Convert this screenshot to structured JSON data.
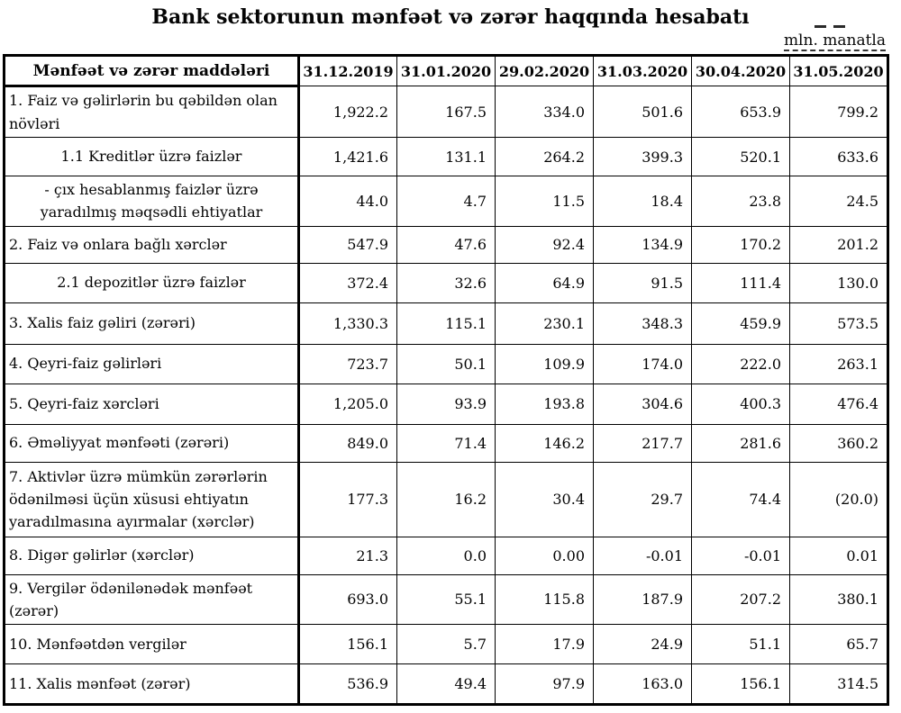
{
  "title": "Bank sektorunun mənfəət və zərər haqqında hesabatı",
  "unit_label": "mln. manatla",
  "table": {
    "header": [
      "Mənfəət və zərər maddələri",
      "31.12.2019",
      "31.01.2020",
      "29.02.2020",
      "31.03.2020",
      "30.04.2020",
      "31.05.2020"
    ],
    "rows": [
      {
        "label": "1. Faiz və gəlirlərin bu qəbildən olan növləri",
        "indent": false,
        "values": [
          "1,922.2",
          "167.5",
          "334.0",
          "501.6",
          "653.9",
          "799.2"
        ]
      },
      {
        "label": "1.1 Kreditlər üzrə faizlər",
        "indent": true,
        "values": [
          "1,421.6",
          "131.1",
          "264.2",
          "399.3",
          "520.1",
          "633.6"
        ]
      },
      {
        "label": "- çıx hesablanmış faizlər üzrə yaradılmış məqsədli ehtiyatlar",
        "indent": true,
        "values": [
          "44.0",
          "4.7",
          "11.5",
          "18.4",
          "23.8",
          "24.5"
        ]
      },
      {
        "label": "2. Faiz və onlara bağlı xərclər",
        "indent": false,
        "values": [
          "547.9",
          "47.6",
          "92.4",
          "134.9",
          "170.2",
          "201.2"
        ]
      },
      {
        "label": "2.1 depozitlər üzrə faizlər",
        "indent": true,
        "values": [
          "372.4",
          "32.6",
          "64.9",
          "91.5",
          "111.4",
          "130.0"
        ]
      },
      {
        "label": "3. Xalis faiz gəliri (zərəri)",
        "indent": false,
        "values": [
          "1,330.3",
          "115.1",
          "230.1",
          "348.3",
          "459.9",
          "573.5"
        ]
      },
      {
        "label": "4. Qeyri-faiz gəlirləri",
        "indent": false,
        "values": [
          "723.7",
          "50.1",
          "109.9",
          "174.0",
          "222.0",
          "263.1"
        ]
      },
      {
        "label": "5. Qeyri-faiz xərcləri",
        "indent": false,
        "values": [
          "1,205.0",
          "93.9",
          "193.8",
          "304.6",
          "400.3",
          "476.4"
        ]
      },
      {
        "label": "6. Əməliyyat mənfəəti (zərəri)",
        "indent": false,
        "values": [
          "849.0",
          "71.4",
          "146.2",
          "217.7",
          "281.6",
          "360.2"
        ]
      },
      {
        "label": "7. Aktivlər üzrə mümkün zərərlərin ödənilməsi üçün xüsusi ehtiyatın yaradılmasına ayırmalar (xərclər)",
        "indent": false,
        "values": [
          "177.3",
          "16.2",
          "30.4",
          "29.7",
          "74.4",
          "(20.0)"
        ]
      },
      {
        "label": "8. Digər gəlirlər (xərclər)",
        "indent": false,
        "values": [
          "21.3",
          "0.0",
          "0.00",
          "-0.01",
          "-0.01",
          "0.01"
        ]
      },
      {
        "label": "9. Vergilər ödənilənədək mənfəət (zərər)",
        "indent": false,
        "values": [
          "693.0",
          "55.1",
          "115.8",
          "187.9",
          "207.2",
          "380.1"
        ]
      },
      {
        "label": "10. Mənfəətdən vergilər",
        "indent": false,
        "values": [
          "156.1",
          "5.7",
          "17.9",
          "24.9",
          "51.1",
          "65.7"
        ]
      },
      {
        "label": "11. Xalis mənfəət (zərər)",
        "indent": false,
        "values": [
          "536.9",
          "49.4",
          "97.9",
          "163.0",
          "156.1",
          "314.5"
        ]
      }
    ]
  }
}
